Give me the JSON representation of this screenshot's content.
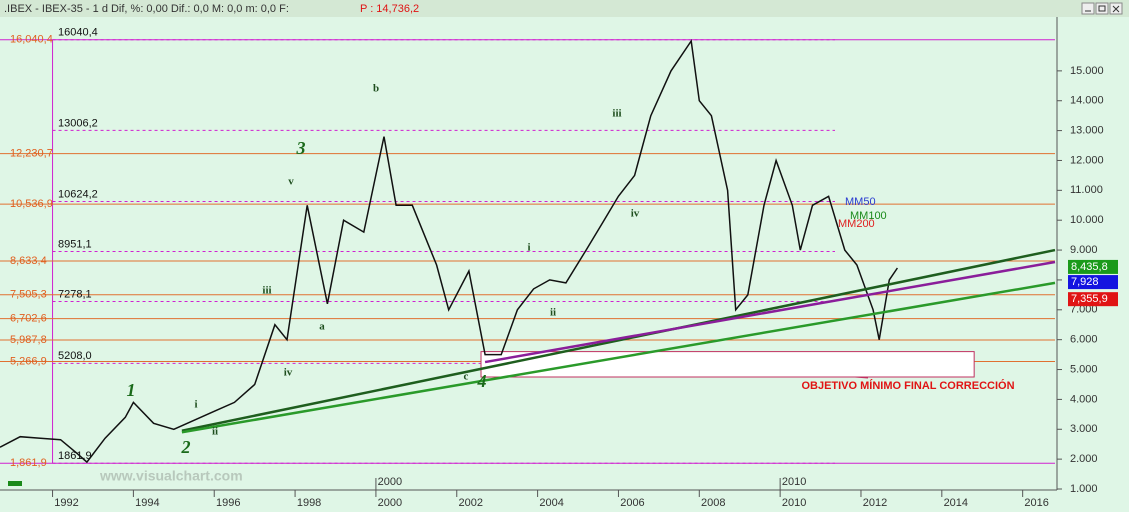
{
  "window": {
    "title": ".IBEX - IBEX-35 -  1 d Dif, %: 0,00 Dif.: 0,0 M: 0,0 m: 0,0 F:",
    "price": "P : 14,736,2"
  },
  "chart_data": {
    "type": "line",
    "x": [
      1990.7,
      1991.2,
      1991.7,
      1992.2,
      1992.6,
      1992.85,
      1993.3,
      1993.8,
      1994.0,
      1994.5,
      1995.0,
      1995.5,
      1996.0,
      1996.5,
      1997.0,
      1997.5,
      1997.8,
      1998.3,
      1998.8,
      1999.2,
      1999.7,
      2000.2,
      2000.5,
      2000.9,
      2001.5,
      2001.8,
      2002.3,
      2002.7,
      2003.1,
      2003.5,
      2003.9,
      2004.3,
      2004.7,
      2005.2,
      2005.6,
      2006.0,
      2006.4,
      2006.8,
      2007.3,
      2007.8,
      2008.0,
      2008.3,
      2008.7,
      2008.9,
      2009.2,
      2009.6,
      2009.9,
      2010.3,
      2010.5,
      2010.8,
      2011.2,
      2011.6,
      2011.9,
      2012.3,
      2012.45,
      2012.7,
      2012.9
    ],
    "series": [
      {
        "name": "IBEX-35",
        "color": "#111111",
        "values": [
          2400,
          2750,
          2700,
          2650,
          2200,
          1900,
          2700,
          3400,
          3900,
          3200,
          3000,
          3300,
          3600,
          3900,
          4500,
          6500,
          6000,
          10500,
          7200,
          10000,
          9600,
          12800,
          10500,
          10500,
          8500,
          7000,
          8300,
          5500,
          5500,
          7000,
          7700,
          8000,
          7900,
          9000,
          9900,
          10800,
          11500,
          13500,
          15000,
          16000,
          14000,
          13500,
          11000,
          7000,
          7500,
          10500,
          12000,
          10500,
          9000,
          10500,
          10800,
          9000,
          8500,
          7000,
          6000,
          8000,
          8400
        ]
      }
    ],
    "xlim": [
      1990.7,
      2016.8
    ],
    "xticks": [
      1992,
      1994,
      1996,
      1998,
      2000,
      2002,
      2004,
      2006,
      2008,
      2010,
      2012,
      2014,
      2016
    ],
    "era_ticks": [
      2000,
      2010
    ],
    "ylim": [
      1000,
      16770
    ],
    "yticks": [
      {
        "value": 1000,
        "label": "1.000"
      },
      {
        "value": 2000,
        "label": "2.000"
      },
      {
        "value": 3000,
        "label": "3.000"
      },
      {
        "value": 4000,
        "label": "4.000"
      },
      {
        "value": 5000,
        "label": "5.000"
      },
      {
        "value": 6000,
        "label": "6.000"
      },
      {
        "value": 7000,
        "label": "7.000"
      },
      {
        "value": 8000,
        "label": "8.000"
      },
      {
        "value": 9000,
        "label": "9.000"
      },
      {
        "value": 10000,
        "label": "10.000"
      },
      {
        "value": 11000,
        "label": "11.000"
      },
      {
        "value": 12000,
        "label": "12.000"
      },
      {
        "value": 13000,
        "label": "13.000"
      },
      {
        "value": 14000,
        "label": "14.000"
      },
      {
        "value": 15000,
        "label": "15.000"
      }
    ],
    "levels": [
      {
        "value": 16040.4,
        "label": "16,040,4"
      },
      {
        "value": 12230.7,
        "label": "12,230,7"
      },
      {
        "value": 10536.9,
        "label": "10,536,9"
      },
      {
        "value": 8633.4,
        "label": "8,633,4"
      },
      {
        "value": 7505.3,
        "label": "7,505,3"
      },
      {
        "value": 6702.6,
        "label": "6,702,6"
      },
      {
        "value": 5987.8,
        "label": "5,987,8"
      },
      {
        "value": 5266.9,
        "label": "5,266,9"
      },
      {
        "value": 1861.9,
        "label": "1,861,9"
      }
    ],
    "fib_levels": [
      {
        "value": 16040.4,
        "label": "16040,4"
      },
      {
        "value": 13006.2,
        "label": "13006,2"
      },
      {
        "value": 10624.2,
        "label": "10624,2"
      },
      {
        "value": 8951.1,
        "label": "8951,1"
      },
      {
        "value": 7278.1,
        "label": "7278,1"
      },
      {
        "value": 5208.0,
        "label": "5208,0"
      },
      {
        "value": 1861.9,
        "label": "1861,9"
      }
    ],
    "trendlines": [
      {
        "color": "#1e5e1e",
        "x": [
          1995.2,
          2016.8
        ],
        "y": [
          2950,
          9000
        ]
      },
      {
        "color": "#8a1e9a",
        "x": [
          2002.7,
          2016.8
        ],
        "y": [
          5250,
          8600
        ]
      },
      {
        "color": "#2a9a2a",
        "x": [
          1995.2,
          2016.8
        ],
        "y": [
          2900,
          7900
        ]
      }
    ],
    "target_zone": {
      "x": [
        2002.6,
        2014.8
      ],
      "y": [
        4750,
        5600
      ],
      "label": "OBJETIVO MÍNIMO FINAL CORRECCIÓN"
    },
    "last_values": [
      {
        "value": 8435.8,
        "label": "8,435,8",
        "color": "#1a9a1a"
      },
      {
        "value": 7928,
        "label": "7,928",
        "color": "#1414e0"
      },
      {
        "value": 7355.9,
        "label": "7,355,9",
        "color": "#e01414"
      }
    ],
    "ma_labels": [
      {
        "text": "MM50",
        "color": "#2a3bd0"
      },
      {
        "text": "MM100",
        "color": "#1a8a1a"
      },
      {
        "text": "MM200",
        "color": "#e02020"
      }
    ],
    "wave_labels": [
      "1",
      "2",
      "3",
      "4",
      "i",
      "ii",
      "iii",
      "iv",
      "v",
      "a",
      "b",
      "c",
      "i",
      "ii",
      "iii",
      "iv"
    ],
    "watermark": "www.visualchart.com"
  }
}
